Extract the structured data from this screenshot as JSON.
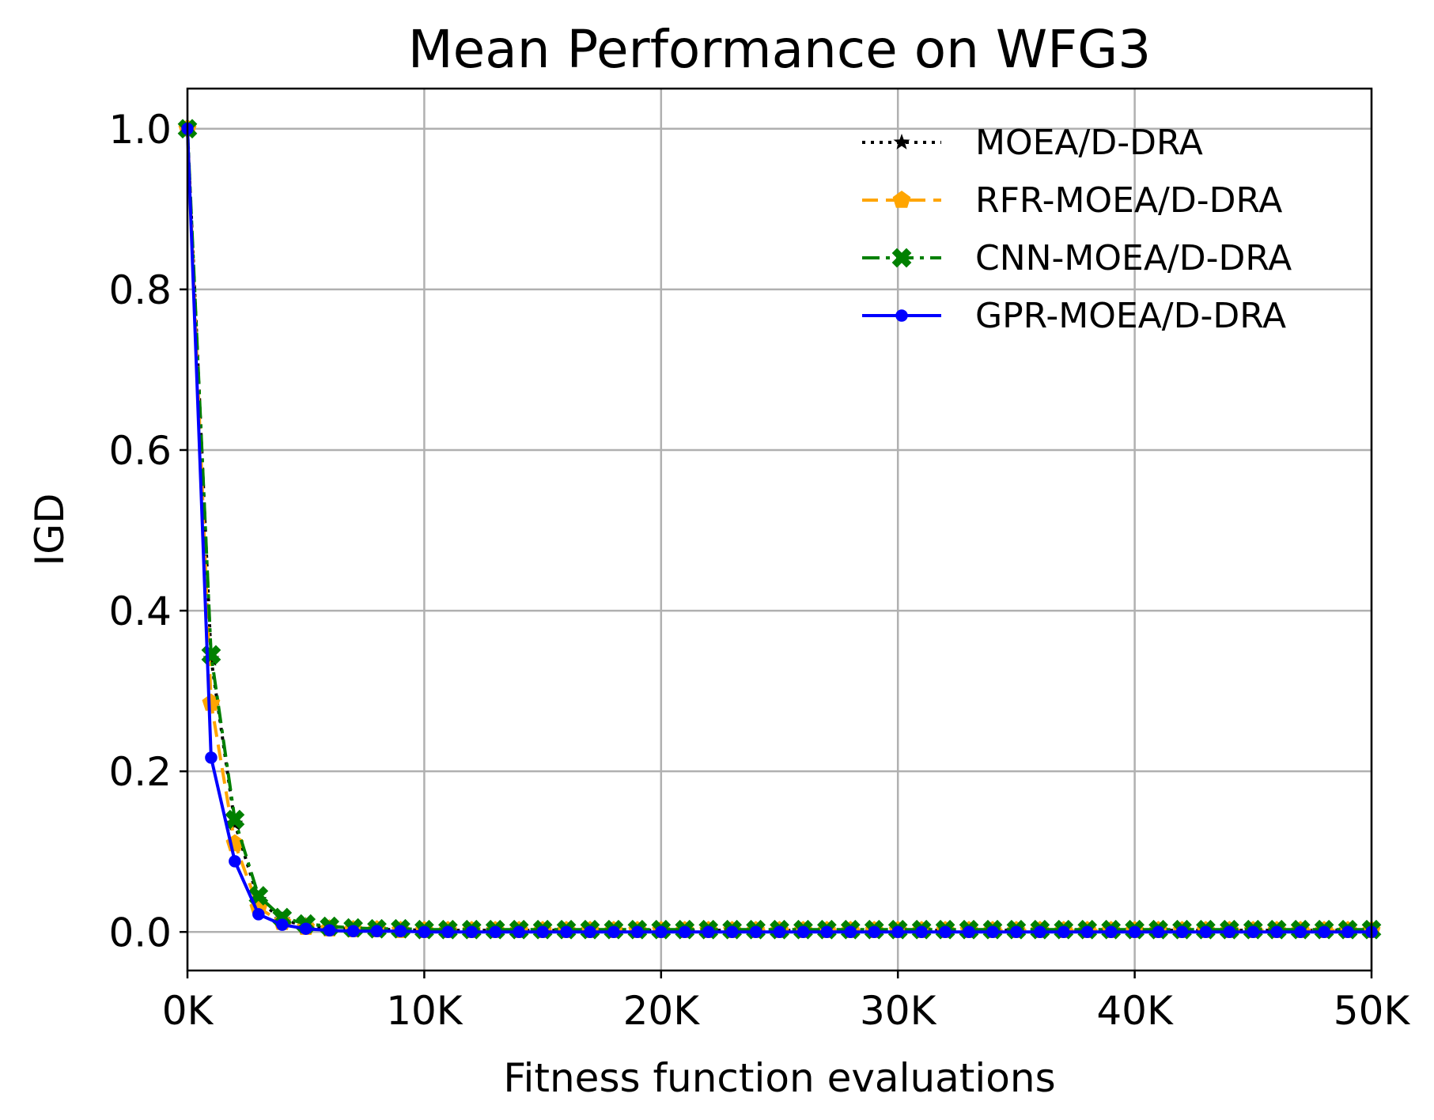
{
  "chart_data": {
    "type": "line",
    "title": "Mean Performance on WFG3",
    "xlabel": "Fitness function evaluations",
    "ylabel": "IGD",
    "xlim": [
      0,
      50000
    ],
    "ylim": [
      -0.048,
      1.05
    ],
    "grid": true,
    "legend_position": "top-right",
    "x_ticks": [
      0,
      10000,
      20000,
      30000,
      40000,
      50000
    ],
    "x_tick_labels": [
      "0K",
      "10K",
      "20K",
      "30K",
      "40K",
      "50K"
    ],
    "y_ticks": [
      0.0,
      0.2,
      0.4,
      0.6,
      0.8,
      1.0
    ],
    "y_tick_labels": [
      "0.0",
      "0.2",
      "0.4",
      "0.6",
      "0.8",
      "1.0"
    ],
    "x": [
      0,
      1000,
      2000,
      3000,
      4000,
      5000,
      6000,
      7000,
      8000,
      9000,
      10000,
      11000,
      12000,
      13000,
      14000,
      15000,
      16000,
      17000,
      18000,
      19000,
      20000,
      21000,
      22000,
      23000,
      24000,
      25000,
      26000,
      27000,
      28000,
      29000,
      30000,
      31000,
      32000,
      33000,
      34000,
      35000,
      36000,
      37000,
      38000,
      39000,
      40000,
      41000,
      42000,
      43000,
      44000,
      45000,
      46000,
      47000,
      48000,
      49000,
      50000
    ],
    "series": [
      {
        "name": "MOEA/D-DRA",
        "color": "#000000",
        "line_style": "dotted",
        "marker": "star",
        "values": [
          1.0,
          0.34,
          0.135,
          0.04,
          0.015,
          0.008,
          0.005,
          0.004,
          0.003,
          0.003,
          0.002,
          0.002,
          0.002,
          0.002,
          0.002,
          0.002,
          0.002,
          0.002,
          0.002,
          0.002,
          0.002,
          0.002,
          0.002,
          0.002,
          0.002,
          0.002,
          0.002,
          0.002,
          0.002,
          0.002,
          0.002,
          0.002,
          0.002,
          0.002,
          0.002,
          0.002,
          0.002,
          0.002,
          0.002,
          0.002,
          0.002,
          0.002,
          0.002,
          0.002,
          0.002,
          0.002,
          0.002,
          0.002,
          0.002,
          0.002,
          0.002
        ]
      },
      {
        "name": "RFR-MOEA/D-DRA",
        "color": "#ffa500",
        "line_style": "dashed",
        "marker": "pentagon",
        "values": [
          1.0,
          0.285,
          0.11,
          0.03,
          0.012,
          0.006,
          0.004,
          0.003,
          0.003,
          0.002,
          0.002,
          0.002,
          0.002,
          0.002,
          0.002,
          0.002,
          0.002,
          0.002,
          0.002,
          0.002,
          0.002,
          0.002,
          0.002,
          0.002,
          0.002,
          0.002,
          0.002,
          0.002,
          0.002,
          0.002,
          0.002,
          0.002,
          0.002,
          0.002,
          0.002,
          0.002,
          0.002,
          0.002,
          0.002,
          0.002,
          0.002,
          0.002,
          0.002,
          0.002,
          0.002,
          0.002,
          0.002,
          0.002,
          0.002,
          0.002,
          0.002
        ]
      },
      {
        "name": "CNN-MOEA/D-DRA",
        "color": "#008000",
        "line_style": "dashdot",
        "marker": "x-filled",
        "values": [
          1.0,
          0.345,
          0.14,
          0.045,
          0.018,
          0.01,
          0.007,
          0.005,
          0.004,
          0.004,
          0.003,
          0.003,
          0.003,
          0.003,
          0.003,
          0.003,
          0.003,
          0.003,
          0.003,
          0.003,
          0.003,
          0.003,
          0.003,
          0.003,
          0.003,
          0.003,
          0.003,
          0.003,
          0.003,
          0.003,
          0.003,
          0.003,
          0.003,
          0.003,
          0.003,
          0.003,
          0.003,
          0.003,
          0.003,
          0.003,
          0.003,
          0.003,
          0.003,
          0.003,
          0.003,
          0.003,
          0.003,
          0.003,
          0.003,
          0.003,
          0.003
        ]
      },
      {
        "name": "GPR-MOEA/D-DRA",
        "color": "#0000ff",
        "line_style": "solid",
        "marker": "circle",
        "values": [
          1.0,
          0.217,
          0.088,
          0.022,
          0.009,
          0.004,
          0.002,
          0.001,
          0.001,
          0.001,
          0.0,
          0.0,
          0.0,
          0.0,
          0.0,
          0.0,
          0.0,
          0.0,
          0.0,
          0.0,
          0.0,
          0.0,
          0.0,
          0.0,
          0.0,
          0.0,
          0.0,
          0.0,
          0.0,
          0.0,
          0.0,
          0.0,
          0.0,
          0.0,
          0.0,
          0.0,
          0.0,
          0.0,
          0.0,
          0.0,
          0.0,
          0.0,
          0.0,
          0.0,
          0.0,
          0.0,
          0.0,
          0.0,
          0.0,
          0.0,
          0.0
        ]
      }
    ]
  }
}
